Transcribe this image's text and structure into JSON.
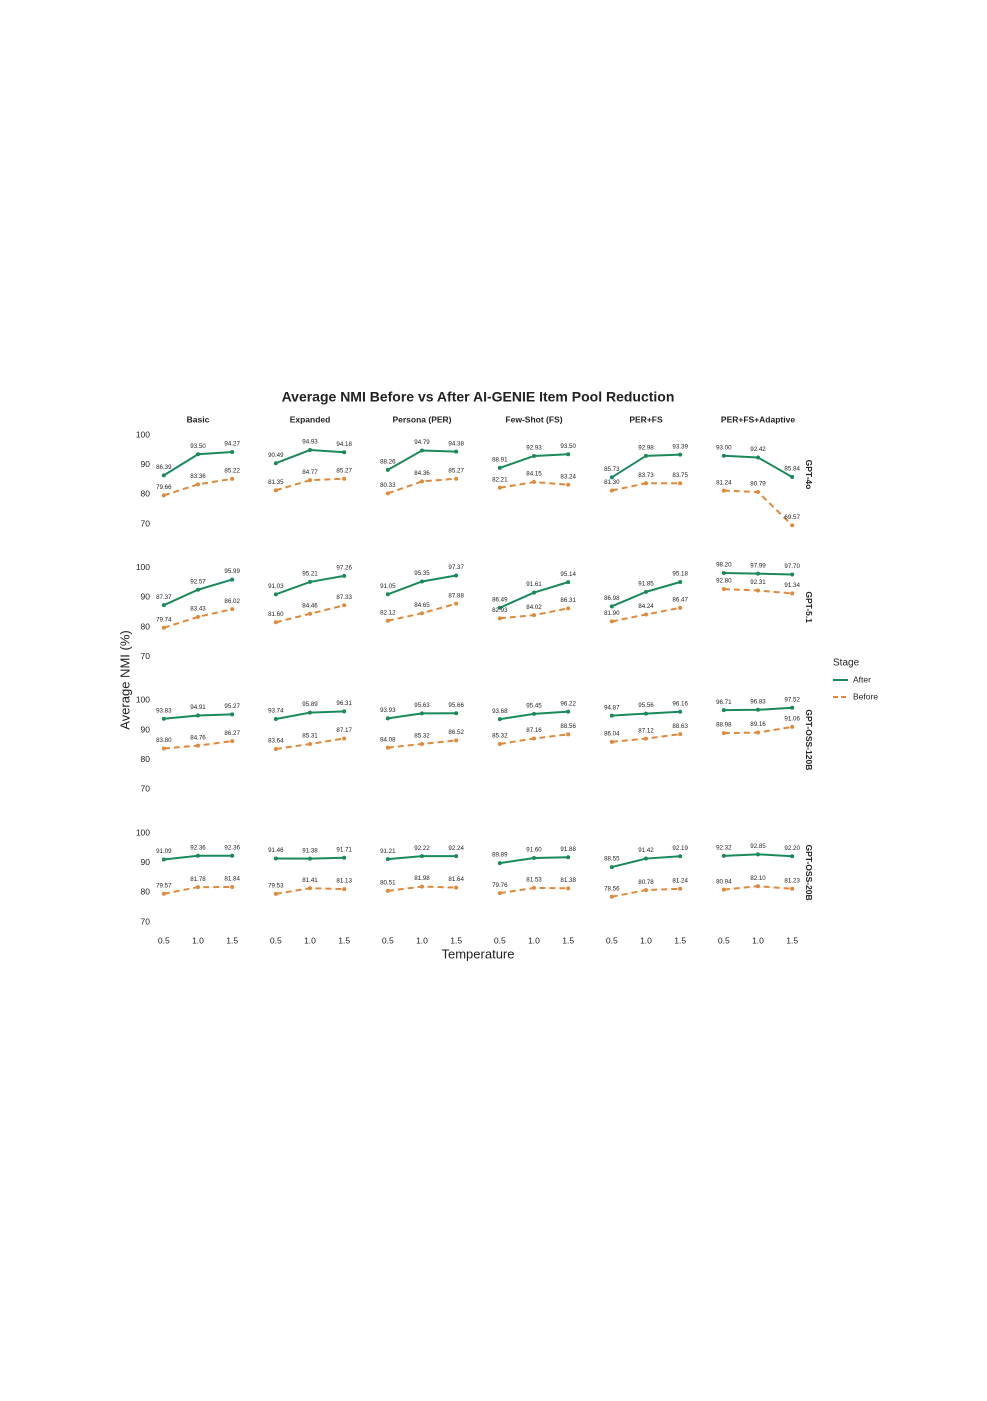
{
  "chart_data": {
    "type": "line",
    "title": "Average NMI Before vs After AI-GENIE Item Pool Reduction",
    "x_label": "Temperature",
    "y_label": "Average NMI (%)",
    "columns": [
      "Basic",
      "Expanded",
      "Persona (PER)",
      "Few-Shot (FS)",
      "PER+FS",
      "PER+FS+Adaptive"
    ],
    "rows": [
      "GPT-4o",
      "GPT-5.1",
      "GPT-OSS-120B",
      "GPT-OSS-20B"
    ],
    "x": [
      0.5,
      1,
      1.5
    ],
    "xlim": [
      0.4,
      1.6
    ],
    "xticks": [
      0.5,
      {
        "value": 1,
        "label": "1.0"
      },
      1.5
    ],
    "ylim": [
      66,
      102
    ],
    "yticks": [
      70,
      80,
      90,
      100
    ],
    "grid": false,
    "legend_title": "Stage",
    "legend_position": "right",
    "series": [
      {
        "name": "After",
        "color": "#1b8a5a",
        "dashed": false
      },
      {
        "name": "Before",
        "color": "#e0893a",
        "dashed": true
      }
    ],
    "panels": [
      [
        [
          {
            "values": [
              86.39,
              93.5,
              94.27
            ],
            "value_labels": [
              "86.39",
              "93.50",
              "94.27"
            ]
          },
          {
            "values": [
              79.66,
              83.36,
              85.22
            ],
            "value_labels": [
              "79.66",
              "83.36",
              "85.22"
            ]
          }
        ],
        [
          {
            "values": [
              90.49,
              94.93,
              94.18
            ],
            "value_labels": [
              "90.49",
              "94.93",
              "94.18"
            ]
          },
          {
            "values": [
              81.35,
              84.77,
              85.27
            ],
            "value_labels": [
              "81.35",
              "84.77",
              "85.27"
            ]
          }
        ],
        [
          {
            "values": [
              88.26,
              94.79,
              94.38
            ],
            "value_labels": [
              "88.26",
              "94.79",
              "94.38"
            ]
          },
          {
            "values": [
              80.33,
              84.36,
              85.27
            ],
            "value_labels": [
              "80.33",
              "84.36",
              "85.27"
            ]
          }
        ],
        [
          {
            "values": [
              88.91,
              92.93,
              93.5
            ],
            "value_labels": [
              "88.91",
              "92.93",
              "93.50"
            ]
          },
          {
            "values": [
              82.21,
              84.15,
              83.24
            ],
            "value_labels": [
              "82.21",
              "84.15",
              "83.24"
            ]
          }
        ],
        [
          {
            "values": [
              85.73,
              92.98,
              93.39
            ],
            "value_labels": [
              "85.73",
              "92.98",
              "93.39"
            ]
          },
          {
            "values": [
              81.3,
              83.73,
              83.75
            ],
            "value_labels": [
              "81.30",
              "83.73",
              "83.75"
            ]
          }
        ],
        [
          {
            "values": [
              93.0,
              92.42,
              85.84
            ],
            "value_labels": [
              "93.00",
              "92.42",
              "85.84"
            ]
          },
          {
            "values": [
              81.24,
              80.79,
              69.57
            ],
            "value_labels": [
              "81.24",
              "80.79",
              "69.57"
            ]
          }
        ]
      ],
      [
        [
          {
            "values": [
              87.37,
              92.57,
              95.99
            ],
            "value_labels": [
              "87.37",
              "92.57",
              "95.99"
            ]
          },
          {
            "values": [
              79.74,
              83.43,
              86.02
            ],
            "value_labels": [
              "79.74",
              "83.43",
              "86.02"
            ]
          }
        ],
        [
          {
            "values": [
              91.03,
              95.21,
              97.26
            ],
            "value_labels": [
              "91.03",
              "95.21",
              "97.26"
            ]
          },
          {
            "values": [
              81.6,
              84.46,
              87.33
            ],
            "value_labels": [
              "81.60",
              "84.46",
              "87.33"
            ]
          }
        ],
        [
          {
            "values": [
              91.05,
              95.35,
              97.37
            ],
            "value_labels": [
              "91.05",
              "95.35",
              "97.37"
            ]
          },
          {
            "values": [
              82.12,
              84.65,
              87.88
            ],
            "value_labels": [
              "82.12",
              "84.65",
              "87.88"
            ]
          }
        ],
        [
          {
            "values": [
              86.49,
              91.61,
              95.14
            ],
            "value_labels": [
              "86.49",
              "91.61",
              "95.14"
            ]
          },
          {
            "values": [
              82.93,
              84.02,
              86.31
            ],
            "value_labels": [
              "82.93",
              "84.02",
              "86.31"
            ]
          }
        ],
        [
          {
            "values": [
              86.98,
              91.85,
              95.18
            ],
            "value_labels": [
              "86.98",
              "91.85",
              "95.18"
            ]
          },
          {
            "values": [
              81.9,
              84.24,
              86.47
            ],
            "value_labels": [
              "81.90",
              "84.24",
              "86.47"
            ]
          }
        ],
        [
          {
            "values": [
              98.2,
              97.99,
              97.7
            ],
            "value_labels": [
              "98.20",
              "97.99",
              "97.70"
            ]
          },
          {
            "values": [
              92.8,
              92.31,
              91.34
            ],
            "value_labels": [
              "92.80",
              "92.31",
              "91.34"
            ]
          }
        ]
      ],
      [
        [
          {
            "values": [
              93.83,
              94.91,
              95.27
            ],
            "value_labels": [
              "93.83",
              "94.91",
              "95.27"
            ]
          },
          {
            "values": [
              83.8,
              84.76,
              86.27
            ],
            "value_labels": [
              "83.80",
              "84.76",
              "86.27"
            ]
          }
        ],
        [
          {
            "values": [
              93.74,
              95.89,
              96.31
            ],
            "value_labels": [
              "93.74",
              "95.89",
              "96.31"
            ]
          },
          {
            "values": [
              83.64,
              85.31,
              87.17
            ],
            "value_labels": [
              "83.64",
              "85.31",
              "87.17"
            ]
          }
        ],
        [
          {
            "values": [
              93.93,
              95.63,
              95.66
            ],
            "value_labels": [
              "93.93",
              "95.63",
              "95.66"
            ]
          },
          {
            "values": [
              84.08,
              85.32,
              86.52
            ],
            "value_labels": [
              "84.08",
              "85.32",
              "86.52"
            ]
          }
        ],
        [
          {
            "values": [
              93.68,
              95.45,
              96.22
            ],
            "value_labels": [
              "93.68",
              "95.45",
              "96.22"
            ]
          },
          {
            "values": [
              85.32,
              87.16,
              88.56
            ],
            "value_labels": [
              "85.32",
              "87.16",
              "88.56"
            ]
          }
        ],
        [
          {
            "values": [
              94.87,
              95.56,
              96.16
            ],
            "value_labels": [
              "94.87",
              "95.56",
              "96.16"
            ]
          },
          {
            "values": [
              86.04,
              87.12,
              88.63
            ],
            "value_labels": [
              "86.04",
              "87.12",
              "88.63"
            ]
          }
        ],
        [
          {
            "values": [
              96.71,
              96.83,
              97.52
            ],
            "value_labels": [
              "96.71",
              "96.83",
              "97.52"
            ]
          },
          {
            "values": [
              88.98,
              89.16,
              91.06
            ],
            "value_labels": [
              "88.98",
              "89.16",
              "91.06"
            ]
          }
        ]
      ],
      [
        [
          {
            "values": [
              91.09,
              92.36,
              92.36
            ],
            "value_labels": [
              "91.09",
              "92.36",
              "92.36"
            ]
          },
          {
            "values": [
              79.57,
              81.78,
              81.84
            ],
            "value_labels": [
              "79.57",
              "81.78",
              "81.84"
            ]
          }
        ],
        [
          {
            "values": [
              91.46,
              91.38,
              91.71
            ],
            "value_labels": [
              "91.46",
              "91.38",
              "91.71"
            ]
          },
          {
            "values": [
              79.53,
              81.41,
              81.13
            ],
            "value_labels": [
              "79.53",
              "81.41",
              "81.13"
            ]
          }
        ],
        [
          {
            "values": [
              91.21,
              92.22,
              92.24
            ],
            "value_labels": [
              "91.21",
              "92.22",
              "92.24"
            ]
          },
          {
            "values": [
              80.51,
              81.98,
              81.64
            ],
            "value_labels": [
              "80.51",
              "81.98",
              "81.64"
            ]
          }
        ],
        [
          {
            "values": [
              89.89,
              91.6,
              91.88
            ],
            "value_labels": [
              "89.89",
              "91.60",
              "91.88"
            ]
          },
          {
            "values": [
              79.76,
              81.53,
              81.38
            ],
            "value_labels": [
              "79.76",
              "81.53",
              "81.38"
            ]
          }
        ],
        [
          {
            "values": [
              88.55,
              91.42,
              92.19
            ],
            "value_labels": [
              "88.55",
              "91.42",
              "92.19"
            ]
          },
          {
            "values": [
              78.56,
              80.78,
              81.24
            ],
            "value_labels": [
              "78.56",
              "80.78",
              "81.24"
            ]
          }
        ],
        [
          {
            "values": [
              92.32,
              92.85,
              92.2
            ],
            "value_labels": [
              "92.32",
              "92.85",
              "92.20"
            ]
          },
          {
            "values": [
              80.94,
              82.1,
              81.23
            ],
            "value_labels": [
              "80.94",
              "82.10",
              "81.23"
            ]
          }
        ]
      ]
    ]
  }
}
